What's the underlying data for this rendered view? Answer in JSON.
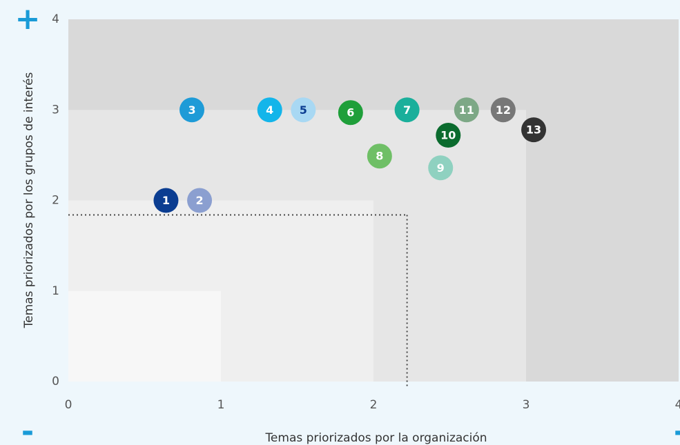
{
  "chart_data": {
    "type": "scatter",
    "xlabel": "Temas priorizados por la organización",
    "ylabel": "Temas priorizados por los grupos de interés",
    "axis_symbols": {
      "top": "+",
      "bottom_left": "-",
      "bottom_right": "-"
    },
    "xlim": [
      0,
      4
    ],
    "ylim": [
      0,
      4
    ],
    "xticks": [
      0,
      1,
      2,
      3,
      4
    ],
    "yticks": [
      0,
      1,
      2,
      3,
      4
    ],
    "region_colors": [
      "#f7f7f7",
      "#efefef",
      "#e6e6e6",
      "#d9d9d9"
    ],
    "threshold": {
      "x": 2.22,
      "y": 1.84
    },
    "labels": [
      "1",
      "2",
      "3",
      "4",
      "5",
      "6",
      "7",
      "8",
      "9",
      "10",
      "11",
      "12",
      "13"
    ],
    "x": [
      0.64,
      0.86,
      0.81,
      1.32,
      1.54,
      1.85,
      2.22,
      2.04,
      2.44,
      2.49,
      2.61,
      2.85,
      3.05
    ],
    "values": [
      2.0,
      2.0,
      3.0,
      3.0,
      3.0,
      2.97,
      3.0,
      2.49,
      2.36,
      2.72,
      3.0,
      3.0,
      2.78
    ],
    "colors": [
      "#0b3d91",
      "#8b9fd0",
      "#1e9bd7",
      "#13b5ea",
      "#a8d8f3",
      "#1f9f3a",
      "#1aaf9b",
      "#6fbf66",
      "#8fd1c0",
      "#0b6b2e",
      "#7da886",
      "#777777",
      "#333333"
    ],
    "label_colors": [
      "#fff",
      "#fff",
      "#fff",
      "#fff",
      "#0b3d91",
      "#fff",
      "#fff",
      "#fff",
      "#fff",
      "#fff",
      "#fff",
      "#fff",
      "#fff"
    ]
  }
}
